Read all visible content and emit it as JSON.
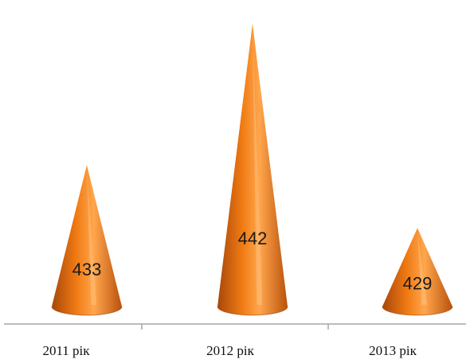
{
  "chart_data": {
    "type": "bar",
    "shape": "cone",
    "categories": [
      "2011 рік",
      "2012 рік",
      "2013 рік"
    ],
    "values": [
      433,
      442,
      429
    ],
    "ylim": [
      424,
      443
    ],
    "grid": false,
    "legend": "none",
    "colors": {
      "cone_light": "#ffa64d",
      "cone_mid": "#f07a13",
      "cone_dark": "#a8470a",
      "axis": "#a6a6a6"
    }
  }
}
